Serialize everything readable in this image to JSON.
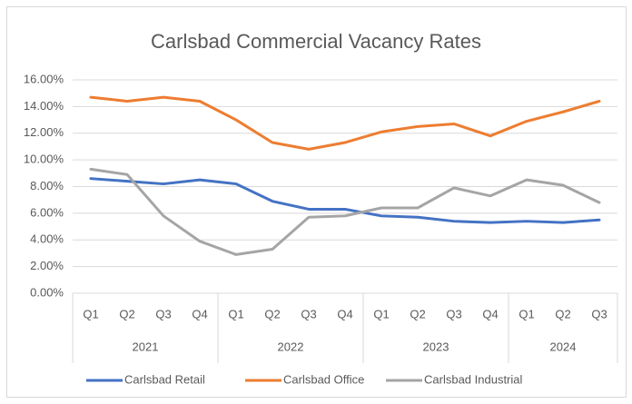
{
  "chart_data": {
    "type": "line",
    "title": "Carlsbad Commercial Vacancy Rates",
    "category_groups": [
      {
        "name": "2021",
        "categories": [
          "Q1",
          "Q2",
          "Q3",
          "Q4"
        ]
      },
      {
        "name": "2022",
        "categories": [
          "Q1",
          "Q2",
          "Q3",
          "Q4"
        ]
      },
      {
        "name": "2023",
        "categories": [
          "Q1",
          "Q2",
          "Q3",
          "Q4"
        ]
      },
      {
        "name": "2024",
        "categories": [
          "Q1",
          "Q2",
          "Q3"
        ]
      }
    ],
    "series": [
      {
        "name": "Carlsbad Retail",
        "color": "#4472c4",
        "values": [
          8.6,
          8.4,
          8.2,
          8.5,
          8.2,
          6.9,
          6.3,
          6.3,
          5.8,
          5.7,
          5.4,
          5.3,
          5.4,
          5.3,
          5.5
        ]
      },
      {
        "name": "Carlsbad Office",
        "color": "#ed7d31",
        "values": [
          14.7,
          14.4,
          14.7,
          14.4,
          13.0,
          11.3,
          10.8,
          11.3,
          12.1,
          12.5,
          12.7,
          11.8,
          12.9,
          13.6,
          14.4
        ]
      },
      {
        "name": "Carlsbad Industrial",
        "color": "#a5a5a5",
        "values": [
          9.3,
          8.9,
          5.8,
          3.9,
          2.9,
          3.3,
          5.7,
          5.8,
          6.4,
          6.4,
          7.9,
          7.3,
          8.5,
          8.1,
          6.8
        ]
      }
    ],
    "ylim": [
      0,
      16
    ],
    "yticks": [
      {
        "value": 0,
        "label": "0.00%"
      },
      {
        "value": 2,
        "label": "2.00%"
      },
      {
        "value": 4,
        "label": "4.00%"
      },
      {
        "value": 6,
        "label": "6.00%"
      },
      {
        "value": 8,
        "label": "8.00%"
      },
      {
        "value": 10,
        "label": "10.00%"
      },
      {
        "value": 12,
        "label": "12.00%"
      },
      {
        "value": 14,
        "label": "14.00%"
      },
      {
        "value": 16,
        "label": "16.00%"
      }
    ],
    "grid": true,
    "legend": "bottom"
  }
}
